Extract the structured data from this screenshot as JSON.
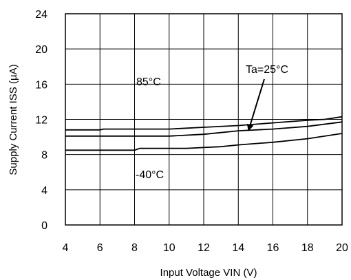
{
  "chart_data": {
    "type": "line",
    "title": "",
    "xlabel": "Input Voltage  VIN  (V)",
    "ylabel": "Supply Current  ISS  (µA)",
    "xlim": [
      4,
      20
    ],
    "ylim": [
      0,
      24
    ],
    "x_ticks": [
      4,
      6,
      8,
      10,
      12,
      14,
      16,
      18,
      20
    ],
    "y_ticks": [
      0,
      4,
      8,
      12,
      16,
      20,
      24
    ],
    "grid": true,
    "series": [
      {
        "name": "85°C",
        "x": [
          4,
          6,
          6.2,
          8,
          10,
          11,
          12,
          14,
          16,
          18,
          19,
          20
        ],
        "y": [
          10.8,
          10.8,
          10.9,
          10.9,
          10.9,
          11.0,
          11.1,
          11.3,
          11.6,
          11.9,
          12.0,
          12.3
        ]
      },
      {
        "name": "Ta=25°C",
        "x": [
          4,
          6,
          8,
          10,
          11,
          12,
          13,
          14,
          16,
          18,
          20
        ],
        "y": [
          10.1,
          10.1,
          10.1,
          10.1,
          10.2,
          10.3,
          10.5,
          10.7,
          10.9,
          11.2,
          11.7
        ]
      },
      {
        "name": "-40°C",
        "x": [
          4,
          6,
          8,
          8.3,
          10,
          11,
          12,
          13,
          14,
          16,
          18,
          20
        ],
        "y": [
          8.5,
          8.5,
          8.5,
          8.7,
          8.7,
          8.7,
          8.8,
          8.9,
          9.1,
          9.4,
          9.8,
          10.4
        ]
      }
    ],
    "annotations": [
      {
        "text": "85°C"
      },
      {
        "text": "Ta=25°C",
        "arrow_to": [
          14.6,
          10.8
        ]
      },
      {
        "text": "-40°C"
      }
    ]
  }
}
